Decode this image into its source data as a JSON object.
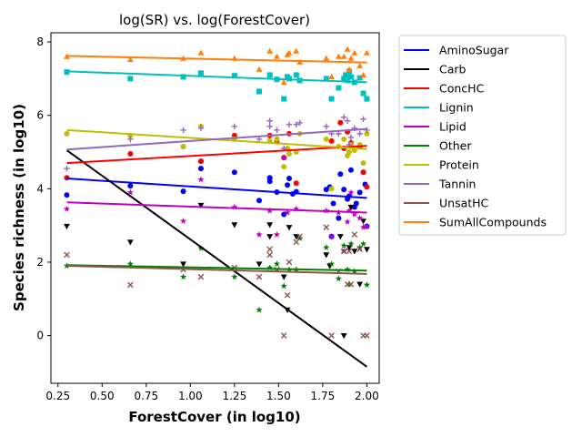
{
  "chart_data": {
    "type": "scatter",
    "title": "log(SR) vs. log(ForestCover)",
    "xlabel": "ForestCover (in log10)",
    "ylabel": "Species richness (in log10)",
    "xlim": [
      0.21,
      2.07
    ],
    "ylim": [
      -1.3,
      8.25
    ],
    "xticks": [
      "0.25",
      "0.50",
      "0.75",
      "1.00",
      "1.25",
      "1.50",
      "1.75",
      "2.00"
    ],
    "yticks": [
      "0",
      "2",
      "4",
      "6",
      "8"
    ],
    "grid": false,
    "legend_position": "outside-right",
    "series": [
      {
        "name": "AminoSugar",
        "color": "#0000ff",
        "marker": "circle",
        "fit": [
          [
            0.3,
            4.28
          ],
          [
            2.0,
            3.75
          ]
        ],
        "points": [
          [
            0.3,
            3.83
          ],
          [
            0.66,
            4.08
          ],
          [
            0.96,
            3.93
          ],
          [
            1.06,
            4.55
          ],
          [
            1.06,
            4.75
          ],
          [
            1.25,
            4.45
          ],
          [
            1.39,
            3.68
          ],
          [
            1.45,
            4.3
          ],
          [
            1.45,
            4.2
          ],
          [
            1.49,
            3.91
          ],
          [
            1.53,
            3.3
          ],
          [
            1.55,
            4.1
          ],
          [
            1.56,
            4.28
          ],
          [
            1.58,
            3.86
          ],
          [
            1.6,
            3.92
          ],
          [
            1.77,
            3.98
          ],
          [
            1.79,
            4.05
          ],
          [
            1.8,
            2.7
          ],
          [
            1.81,
            3.6
          ],
          [
            1.84,
            3.2
          ],
          [
            1.85,
            4.4
          ],
          [
            1.87,
            3.98
          ],
          [
            1.89,
            3.72
          ],
          [
            1.9,
            3.8
          ],
          [
            1.91,
            4.51
          ],
          [
            1.93,
            3.5
          ],
          [
            1.94,
            3.6
          ],
          [
            1.96,
            3.9
          ],
          [
            1.98,
            4.45
          ],
          [
            1.99,
            4.12
          ],
          [
            2.0,
            2.98
          ]
        ]
      },
      {
        "name": "Carb",
        "color": "#000000",
        "marker": "triangle-down",
        "fit": [
          [
            0.3,
            5.05
          ],
          [
            2.0,
            -0.85
          ]
        ],
        "points": [
          [
            0.3,
            2.98
          ],
          [
            0.66,
            2.55
          ],
          [
            0.96,
            1.95
          ],
          [
            1.06,
            3.55
          ],
          [
            1.25,
            3.02
          ],
          [
            1.39,
            1.95
          ],
          [
            1.45,
            2.7
          ],
          [
            1.45,
            3.02
          ],
          [
            1.53,
            1.6
          ],
          [
            1.55,
            0.7
          ],
          [
            1.56,
            2.95
          ],
          [
            1.6,
            2.7
          ],
          [
            1.77,
            2.2
          ],
          [
            1.79,
            1.9
          ],
          [
            1.85,
            2.7
          ],
          [
            1.87,
            0.0
          ],
          [
            1.9,
            2.4
          ],
          [
            1.91,
            3.5
          ],
          [
            1.93,
            2.3
          ],
          [
            1.96,
            1.4
          ],
          [
            1.98,
            3.12
          ],
          [
            2.0,
            2.35
          ]
        ]
      },
      {
        "name": "ConcHC",
        "color": "#ff0000",
        "marker": "circle",
        "fit": [
          [
            0.3,
            4.7
          ],
          [
            2.0,
            5.17
          ]
        ],
        "points": [
          [
            0.3,
            4.3
          ],
          [
            0.66,
            4.95
          ],
          [
            0.96,
            5.15
          ],
          [
            1.06,
            4.75
          ],
          [
            1.25,
            5.45
          ],
          [
            1.45,
            5.45
          ],
          [
            1.49,
            5.28
          ],
          [
            1.53,
            4.85
          ],
          [
            1.56,
            5.5
          ],
          [
            1.6,
            4.15
          ],
          [
            1.8,
            5.3
          ],
          [
            1.85,
            5.8
          ],
          [
            1.87,
            5.1
          ],
          [
            1.89,
            5.55
          ],
          [
            1.91,
            5.25
          ],
          [
            1.96,
            5.15
          ],
          [
            1.98,
            4.45
          ],
          [
            2.0,
            4.05
          ]
        ]
      },
      {
        "name": "Lignin",
        "color": "#00bfbf",
        "marker": "square",
        "fit": [
          [
            0.3,
            7.2
          ],
          [
            2.0,
            6.9
          ]
        ],
        "points": [
          [
            0.3,
            7.18
          ],
          [
            0.66,
            7.0
          ],
          [
            0.96,
            7.05
          ],
          [
            1.06,
            7.15
          ],
          [
            1.25,
            7.08
          ],
          [
            1.39,
            6.65
          ],
          [
            1.45,
            7.1
          ],
          [
            1.49,
            6.98
          ],
          [
            1.53,
            6.45
          ],
          [
            1.55,
            7.05
          ],
          [
            1.56,
            7.0
          ],
          [
            1.6,
            7.1
          ],
          [
            1.62,
            6.95
          ],
          [
            1.77,
            7.0
          ],
          [
            1.8,
            6.45
          ],
          [
            1.84,
            6.75
          ],
          [
            1.87,
            7.0
          ],
          [
            1.88,
            7.1
          ],
          [
            1.89,
            6.95
          ],
          [
            1.9,
            7.2
          ],
          [
            1.91,
            7.05
          ],
          [
            1.93,
            6.9
          ],
          [
            1.96,
            7.02
          ],
          [
            1.98,
            6.6
          ],
          [
            2.0,
            6.45
          ]
        ]
      },
      {
        "name": "Lipid",
        "color": "#bf00bf",
        "marker": "star",
        "fit": [
          [
            0.3,
            3.63
          ],
          [
            2.0,
            3.35
          ]
        ],
        "points": [
          [
            0.3,
            3.45
          ],
          [
            0.66,
            3.9
          ],
          [
            0.96,
            3.12
          ],
          [
            1.06,
            4.25
          ],
          [
            1.25,
            3.5
          ],
          [
            1.39,
            2.75
          ],
          [
            1.45,
            3.4
          ],
          [
            1.49,
            2.75
          ],
          [
            1.53,
            4.85
          ],
          [
            1.55,
            3.35
          ],
          [
            1.56,
            5.05
          ],
          [
            1.6,
            3.45
          ],
          [
            1.77,
            3.4
          ],
          [
            1.8,
            2.7
          ],
          [
            1.84,
            3.35
          ],
          [
            1.87,
            2.3
          ],
          [
            1.89,
            3.1
          ],
          [
            1.9,
            3.4
          ],
          [
            1.91,
            3.9
          ],
          [
            1.93,
            3.3
          ],
          [
            1.96,
            3.2
          ],
          [
            1.98,
            2.95
          ],
          [
            2.0,
            2.98
          ]
        ]
      },
      {
        "name": "Other",
        "color": "#008000",
        "marker": "star",
        "fit": [
          [
            0.3,
            1.92
          ],
          [
            2.0,
            1.77
          ]
        ],
        "points": [
          [
            0.3,
            1.9
          ],
          [
            0.66,
            1.95
          ],
          [
            0.96,
            1.6
          ],
          [
            1.06,
            2.38
          ],
          [
            1.25,
            1.6
          ],
          [
            1.39,
            0.7
          ],
          [
            1.45,
            1.85
          ],
          [
            1.49,
            1.95
          ],
          [
            1.53,
            1.35
          ],
          [
            1.56,
            1.8
          ],
          [
            1.6,
            1.8
          ],
          [
            1.62,
            2.65
          ],
          [
            1.77,
            2.4
          ],
          [
            1.8,
            1.95
          ],
          [
            1.84,
            1.55
          ],
          [
            1.87,
            2.45
          ],
          [
            1.89,
            1.8
          ],
          [
            1.9,
            1.4
          ],
          [
            1.91,
            2.5
          ],
          [
            1.93,
            1.75
          ],
          [
            1.96,
            2.4
          ],
          [
            1.98,
            2.5
          ],
          [
            2.0,
            1.38
          ]
        ]
      },
      {
        "name": "Protein",
        "color": "#bfbf00",
        "marker": "circle",
        "fit": [
          [
            0.3,
            5.6
          ],
          [
            2.0,
            5.08
          ]
        ],
        "points": [
          [
            0.3,
            5.5
          ],
          [
            0.66,
            5.45
          ],
          [
            0.96,
            5.15
          ],
          [
            1.06,
            5.7
          ],
          [
            1.25,
            5.35
          ],
          [
            1.45,
            5.3
          ],
          [
            1.49,
            5.35
          ],
          [
            1.53,
            4.6
          ],
          [
            1.55,
            5.1
          ],
          [
            1.56,
            4.95
          ],
          [
            1.6,
            5.0
          ],
          [
            1.62,
            5.5
          ],
          [
            1.77,
            5.35
          ],
          [
            1.8,
            4.0
          ],
          [
            1.84,
            5.15
          ],
          [
            1.87,
            5.35
          ],
          [
            1.89,
            4.9
          ],
          [
            1.9,
            5.0
          ],
          [
            1.91,
            5.2
          ],
          [
            1.93,
            5.05
          ],
          [
            1.96,
            5.2
          ],
          [
            1.98,
            4.7
          ],
          [
            2.0,
            5.5
          ]
        ]
      },
      {
        "name": "Tannin",
        "color": "#9467bd",
        "marker": "plus",
        "fit": [
          [
            0.3,
            5.07
          ],
          [
            2.0,
            5.63
          ]
        ],
        "points": [
          [
            0.3,
            4.55
          ],
          [
            0.66,
            5.35
          ],
          [
            0.96,
            5.6
          ],
          [
            1.06,
            5.65
          ],
          [
            1.25,
            5.7
          ],
          [
            1.39,
            5.35
          ],
          [
            1.45,
            5.85
          ],
          [
            1.45,
            5.7
          ],
          [
            1.49,
            5.6
          ],
          [
            1.53,
            5.1
          ],
          [
            1.56,
            5.75
          ],
          [
            1.6,
            5.75
          ],
          [
            1.62,
            5.8
          ],
          [
            1.77,
            5.7
          ],
          [
            1.8,
            5.5
          ],
          [
            1.84,
            5.5
          ],
          [
            1.87,
            5.95
          ],
          [
            1.89,
            5.85
          ],
          [
            1.9,
            5.2
          ],
          [
            1.91,
            5.4
          ],
          [
            1.93,
            5.65
          ],
          [
            1.96,
            5.5
          ],
          [
            1.98,
            5.9
          ],
          [
            2.0,
            5.6
          ]
        ]
      },
      {
        "name": "UnsatHC",
        "color": "#8c564b",
        "marker": "x",
        "fit": [
          [
            0.3,
            1.9
          ],
          [
            2.0,
            1.68
          ]
        ],
        "points": [
          [
            0.3,
            2.2
          ],
          [
            0.66,
            1.38
          ],
          [
            0.96,
            1.8
          ],
          [
            1.06,
            1.6
          ],
          [
            1.25,
            1.85
          ],
          [
            1.39,
            1.6
          ],
          [
            1.45,
            2.35
          ],
          [
            1.45,
            2.2
          ],
          [
            1.49,
            1.8
          ],
          [
            1.53,
            0.0
          ],
          [
            1.55,
            1.1
          ],
          [
            1.56,
            2.0
          ],
          [
            1.6,
            2.55
          ],
          [
            1.62,
            2.7
          ],
          [
            1.77,
            2.95
          ],
          [
            1.8,
            0.0
          ],
          [
            1.84,
            1.75
          ],
          [
            1.87,
            2.3
          ],
          [
            1.89,
            1.4
          ],
          [
            1.9,
            2.3
          ],
          [
            1.91,
            1.4
          ],
          [
            1.93,
            2.75
          ],
          [
            1.96,
            2.35
          ],
          [
            1.98,
            0.0
          ],
          [
            2.0,
            0.0
          ]
        ]
      },
      {
        "name": "SumAllCompounds",
        "color": "#ff7f0e",
        "marker": "triangle-up",
        "fit": [
          [
            0.3,
            7.62
          ],
          [
            2.0,
            7.44
          ]
        ],
        "points": [
          [
            0.3,
            7.6
          ],
          [
            0.66,
            7.52
          ],
          [
            0.96,
            7.55
          ],
          [
            1.06,
            7.7
          ],
          [
            1.25,
            7.55
          ],
          [
            1.39,
            7.25
          ],
          [
            1.45,
            7.75
          ],
          [
            1.49,
            7.6
          ],
          [
            1.53,
            6.9
          ],
          [
            1.55,
            7.65
          ],
          [
            1.56,
            7.7
          ],
          [
            1.6,
            7.75
          ],
          [
            1.62,
            7.45
          ],
          [
            1.77,
            7.55
          ],
          [
            1.8,
            7.05
          ],
          [
            1.84,
            7.6
          ],
          [
            1.87,
            7.6
          ],
          [
            1.89,
            7.8
          ],
          [
            1.9,
            7.25
          ],
          [
            1.91,
            7.55
          ],
          [
            1.93,
            7.7
          ],
          [
            1.96,
            7.35
          ],
          [
            1.98,
            7.1
          ],
          [
            2.0,
            7.7
          ]
        ]
      }
    ]
  }
}
